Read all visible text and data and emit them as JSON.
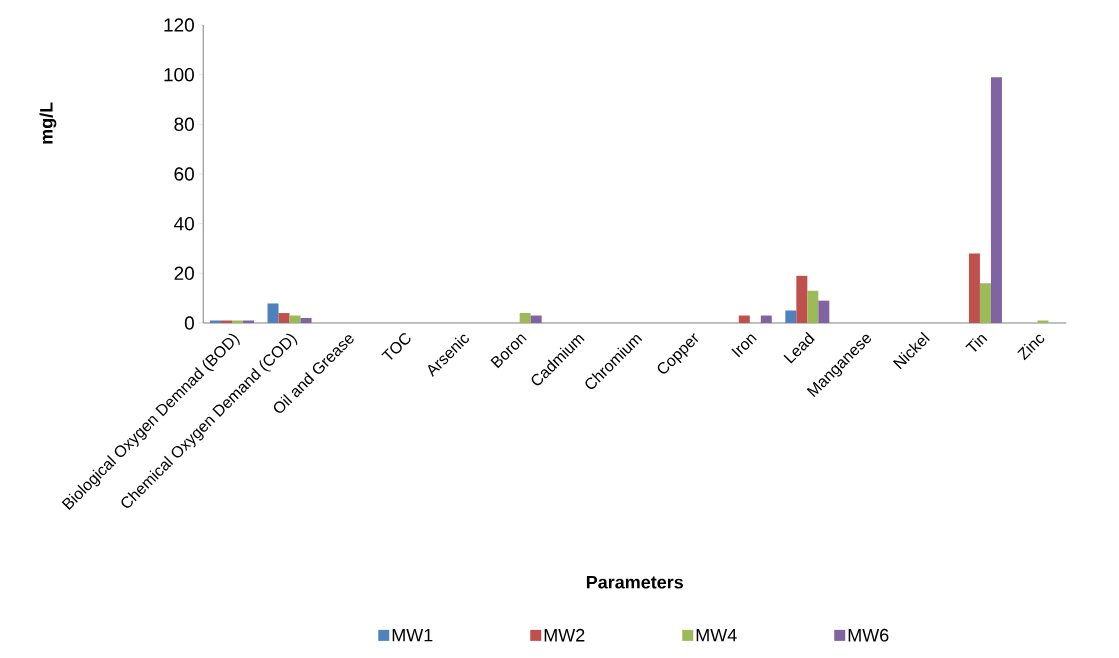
{
  "chart_data": {
    "type": "bar",
    "xlabel": "Parameters",
    "ylabel": "mg/L",
    "categories": [
      "Biological Oxygen Demnad (BOD)",
      "Chemical Oxygen Demand (COD)",
      "Oil and Grease",
      "TOC",
      "Arsenic",
      "Boron",
      "Cadmium",
      "Chromium",
      "Copper",
      "Iron",
      "Lead",
      "Manganese",
      "Nickel",
      "Tin",
      "Zinc"
    ],
    "series": [
      {
        "name": "MW1",
        "color": "#4f81bd",
        "values": [
          1,
          8,
          0,
          0,
          0,
          0,
          0,
          0,
          0,
          0,
          5,
          0,
          0,
          0,
          0
        ]
      },
      {
        "name": "MW2",
        "color": "#c0504d",
        "values": [
          1,
          4,
          0,
          0,
          0,
          0,
          0,
          0,
          0,
          3,
          19,
          0,
          0,
          28,
          0
        ]
      },
      {
        "name": "MW4",
        "color": "#9bbb59",
        "values": [
          1,
          3,
          0,
          0,
          0,
          4,
          0,
          0,
          0,
          0,
          13,
          0,
          0,
          16,
          1
        ]
      },
      {
        "name": "MW6",
        "color": "#8064a2",
        "values": [
          1,
          2,
          0,
          0,
          0,
          3,
          0,
          0,
          0,
          3,
          9,
          0,
          0,
          99,
          0
        ]
      }
    ],
    "ylim": [
      0,
      120
    ],
    "yticks": [
      0,
      20,
      40,
      60,
      80,
      100,
      120
    ],
    "legend": "bottom"
  }
}
